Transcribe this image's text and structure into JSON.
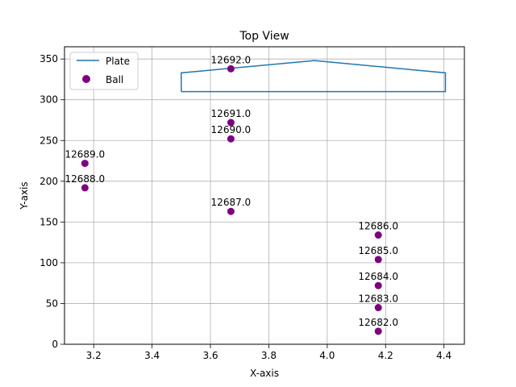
{
  "chart_data": {
    "type": "scatter",
    "title": "Top View",
    "xlabel": "X-axis",
    "ylabel": "Y-axis",
    "xlim": [
      3.1,
      4.47
    ],
    "ylim": [
      0,
      365
    ],
    "x_ticks": [
      3.2,
      3.4,
      3.6,
      3.8,
      4.0,
      4.2,
      4.4
    ],
    "x_tick_labels": [
      "3.2",
      "3.4",
      "3.6",
      "3.8",
      "4.0",
      "4.2",
      "4.4"
    ],
    "y_ticks": [
      0,
      50,
      100,
      150,
      200,
      250,
      300,
      350
    ],
    "y_tick_labels": [
      "0",
      "50",
      "100",
      "150",
      "200",
      "250",
      "300",
      "350"
    ],
    "grid": true,
    "legend_position": "top-left",
    "series": [
      {
        "name": "Plate",
        "kind": "line",
        "color": "#1f77b4",
        "points": [
          [
            3.5,
            310
          ],
          [
            3.5,
            333
          ],
          [
            3.955,
            348
          ],
          [
            4.405,
            333
          ],
          [
            4.405,
            310
          ],
          [
            3.5,
            310
          ]
        ]
      },
      {
        "name": "Ball",
        "kind": "scatter",
        "color": "#800080",
        "points": [
          {
            "x": 4.175,
            "y": 16,
            "label": "12682.0"
          },
          {
            "x": 4.175,
            "y": 45,
            "label": "12683.0"
          },
          {
            "x": 4.175,
            "y": 72,
            "label": "12684.0"
          },
          {
            "x": 4.175,
            "y": 104,
            "label": "12685.0"
          },
          {
            "x": 4.175,
            "y": 134,
            "label": "12686.0"
          },
          {
            "x": 3.67,
            "y": 163,
            "label": "12687.0"
          },
          {
            "x": 3.17,
            "y": 192,
            "label": "12688.0"
          },
          {
            "x": 3.17,
            "y": 222,
            "label": "12689.0"
          },
          {
            "x": 3.67,
            "y": 252,
            "label": "12690.0"
          },
          {
            "x": 3.67,
            "y": 272,
            "label": "12691.0"
          },
          {
            "x": 3.67,
            "y": 338,
            "label": "12692.0"
          }
        ]
      }
    ]
  }
}
